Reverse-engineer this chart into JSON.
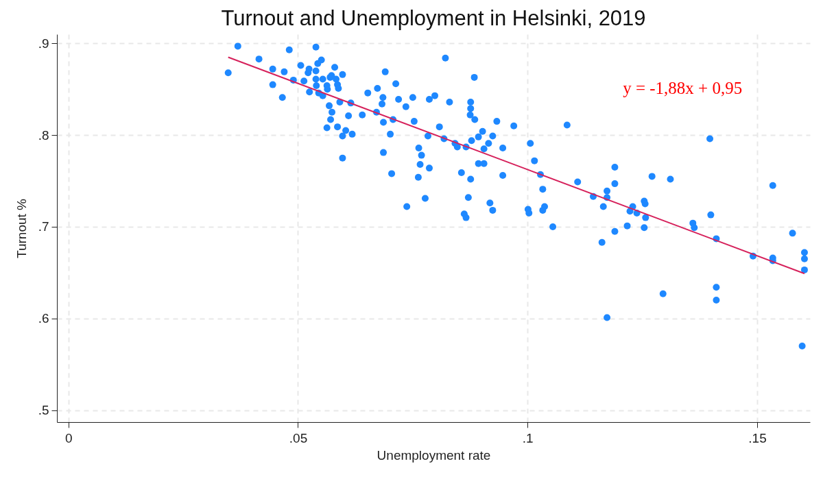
{
  "chart_data": {
    "type": "scatter",
    "title": "Turnout and Unemployment in Helsinki, 2019",
    "xlabel": "Unemployment rate",
    "ylabel": "Turnout %",
    "xlim": [
      -0.0025,
      0.1615
    ],
    "ylim": [
      0.487,
      0.91
    ],
    "xticks": [
      0,
      {
        "value": 0.05,
        "label": ".05"
      },
      {
        "value": 0.1,
        "label": ".1"
      },
      {
        "value": 0.15,
        "label": ".15"
      }
    ],
    "yticks": [
      {
        "value": 0.5,
        "label": ".5"
      },
      {
        "value": 0.6,
        "label": ".6"
      },
      {
        "value": 0.7,
        "label": ".7"
      },
      {
        "value": 0.8,
        "label": ".8"
      },
      {
        "value": 0.9,
        "label": ".9"
      }
    ],
    "grid": true,
    "line_style": "solid",
    "annotations": [
      "y = -1,88x + 0,95"
    ],
    "series": [
      {
        "marker": "circle",
        "color": "#1e88ff",
        "x": [
          0.0348,
          0.0369,
          0.0415,
          0.0445,
          0.0445,
          0.0466,
          0.047,
          0.0481,
          0.049,
          0.0506,
          0.0513,
          0.0524,
          0.0522,
          0.0525,
          0.0539,
          0.0539,
          0.0543,
          0.0551,
          0.0539,
          0.054,
          0.0545,
          0.0554,
          0.0554,
          0.0563,
          0.0564,
          0.057,
          0.0573,
          0.058,
          0.0583,
          0.0586,
          0.0588,
          0.0597,
          0.0568,
          0.0574,
          0.0571,
          0.0563,
          0.0586,
          0.0591,
          0.0615,
          0.061,
          0.0604,
          0.0597,
          0.0618,
          0.0597,
          0.064,
          0.0652,
          0.069,
          0.0673,
          0.0685,
          0.0683,
          0.0671,
          0.0686,
          0.0707,
          0.0713,
          0.0719,
          0.0701,
          0.0686,
          0.0704,
          0.0735,
          0.075,
          0.0753,
          0.0763,
          0.0769,
          0.0766,
          0.0762,
          0.0786,
          0.0737,
          0.0777,
          0.0786,
          0.0798,
          0.0821,
          0.0808,
          0.083,
          0.0783,
          0.0818,
          0.0842,
          0.0847,
          0.0866,
          0.0878,
          0.0856,
          0.0876,
          0.0871,
          0.0862,
          0.0866,
          0.0884,
          0.0876,
          0.0876,
          0.0875,
          0.0885,
          0.0893,
          0.0902,
          0.0915,
          0.0905,
          0.0924,
          0.0933,
          0.0946,
          0.0893,
          0.0905,
          0.0946,
          0.0918,
          0.0924,
          0.097,
          0.1086,
          0.1006,
          0.1015,
          0.1028,
          0.1033,
          0.1037,
          0.1033,
          0.1001,
          0.1003,
          0.1055,
          0.1109,
          0.1143,
          0.1173,
          0.1173,
          0.1165,
          0.119,
          0.119,
          0.1162,
          0.119,
          0.1217,
          0.1229,
          0.1223,
          0.1238,
          0.1254,
          0.1256,
          0.1257,
          0.1254,
          0.1271,
          0.1397,
          0.1311,
          0.136,
          0.1363,
          0.1399,
          0.1411,
          0.1295,
          0.1411,
          0.1411,
          0.1491,
          0.1534,
          0.1534,
          0.1534,
          0.1577,
          0.1603,
          0.1603,
          0.1603,
          0.1173,
          0.1598
        ],
        "values": [
          0.868,
          0.897,
          0.883,
          0.872,
          0.855,
          0.841,
          0.869,
          0.893,
          0.86,
          0.876,
          0.859,
          0.872,
          0.868,
          0.847,
          0.896,
          0.87,
          0.878,
          0.882,
          0.861,
          0.854,
          0.846,
          0.843,
          0.861,
          0.854,
          0.85,
          0.863,
          0.865,
          0.874,
          0.861,
          0.855,
          0.851,
          0.866,
          0.832,
          0.825,
          0.817,
          0.808,
          0.809,
          0.836,
          0.835,
          0.821,
          0.805,
          0.799,
          0.801,
          0.775,
          0.822,
          0.846,
          0.869,
          0.851,
          0.841,
          0.834,
          0.825,
          0.814,
          0.817,
          0.856,
          0.839,
          0.801,
          0.781,
          0.758,
          0.831,
          0.841,
          0.815,
          0.786,
          0.778,
          0.768,
          0.754,
          0.764,
          0.722,
          0.731,
          0.839,
          0.843,
          0.884,
          0.809,
          0.836,
          0.799,
          0.796,
          0.791,
          0.787,
          0.787,
          0.794,
          0.759,
          0.752,
          0.732,
          0.714,
          0.71,
          0.863,
          0.836,
          0.829,
          0.822,
          0.817,
          0.798,
          0.804,
          0.791,
          0.785,
          0.799,
          0.815,
          0.786,
          0.769,
          0.769,
          0.756,
          0.726,
          0.718,
          0.81,
          0.811,
          0.791,
          0.772,
          0.757,
          0.741,
          0.722,
          0.718,
          0.719,
          0.715,
          0.7,
          0.749,
          0.733,
          0.739,
          0.732,
          0.722,
          0.765,
          0.747,
          0.683,
          0.695,
          0.701,
          0.722,
          0.717,
          0.715,
          0.728,
          0.725,
          0.71,
          0.699,
          0.755,
          0.796,
          0.752,
          0.704,
          0.699,
          0.713,
          0.687,
          0.627,
          0.634,
          0.62,
          0.668,
          0.745,
          0.666,
          0.663,
          0.693,
          0.672,
          0.665,
          0.653,
          0.601,
          0.57
        ]
      },
      {
        "type": "line",
        "color": "#d6215b",
        "x": [
          0.0348,
          0.1603
        ],
        "values": [
          0.885,
          0.649
        ]
      }
    ]
  }
}
